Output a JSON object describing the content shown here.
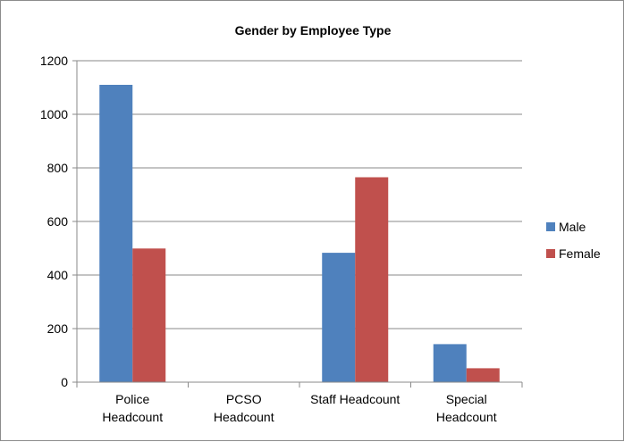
{
  "chart_data": {
    "type": "bar",
    "title": "Gender by Employee Type",
    "categories": [
      [
        "Police",
        "Headcount"
      ],
      [
        "PCSO",
        "Headcount"
      ],
      [
        "Staff Headcount"
      ],
      [
        "Special",
        "Headcount"
      ]
    ],
    "series": [
      {
        "name": "Male",
        "color": "#4f81bd",
        "values": [
          1110,
          0,
          483,
          142
        ]
      },
      {
        "name": "Female",
        "color": "#c0504d",
        "values": [
          499,
          0,
          765,
          52
        ]
      }
    ],
    "ylim": [
      0,
      1200
    ],
    "yticks": [
      0,
      200,
      400,
      600,
      800,
      1000,
      1200
    ],
    "grid": true,
    "legend_position": "right"
  }
}
